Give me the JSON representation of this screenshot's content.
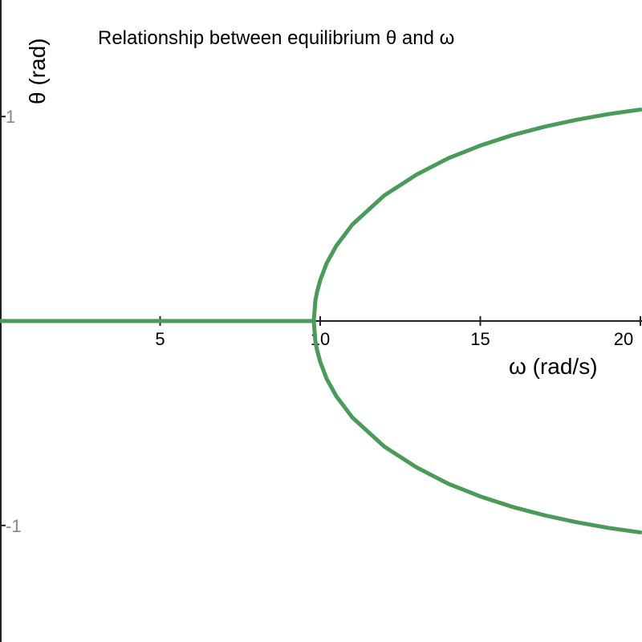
{
  "chart_data": {
    "type": "line",
    "title": "Relationship between equilibrium θ  and ω",
    "xlabel": "ω (rad/s)",
    "ylabel": "θ (rad)",
    "xlim": [
      0,
      20
    ],
    "ylim": [
      -1.57,
      1.57
    ],
    "x_ticks": [
      "5",
      "10",
      "15",
      "20"
    ],
    "x_tick_values": [
      5,
      10,
      15,
      20
    ],
    "y_ticks": [
      "1",
      "-1"
    ],
    "y_tick_values": [
      1,
      -1
    ],
    "grid": false,
    "colors": {
      "curve": "#4a9a5a",
      "axis": "#222222",
      "y_tick_label": "#888888"
    },
    "series": [
      {
        "x": [
          0,
          9.8
        ],
        "y": [
          0,
          0
        ]
      },
      {
        "x": [
          9.8,
          9.85,
          9.9,
          10.0,
          10.2,
          10.5,
          11,
          12,
          13,
          14,
          15,
          16,
          17,
          18,
          19,
          20
        ],
        "y": [
          0,
          0.1,
          0.141,
          0.199,
          0.282,
          0.367,
          0.471,
          0.614,
          0.715,
          0.796,
          0.858,
          0.909,
          0.95,
          0.984,
          1.012,
          1.034
        ]
      },
      {
        "x": [
          9.8,
          9.85,
          9.9,
          10.0,
          10.2,
          10.5,
          11,
          12,
          13,
          14,
          15,
          16,
          17,
          18,
          19,
          20
        ],
        "y": [
          0,
          -0.1,
          -0.141,
          -0.199,
          -0.282,
          -0.367,
          -0.471,
          -0.614,
          -0.715,
          -0.796,
          -0.858,
          -0.909,
          -0.95,
          -0.984,
          -1.012,
          -1.034
        ]
      }
    ]
  }
}
